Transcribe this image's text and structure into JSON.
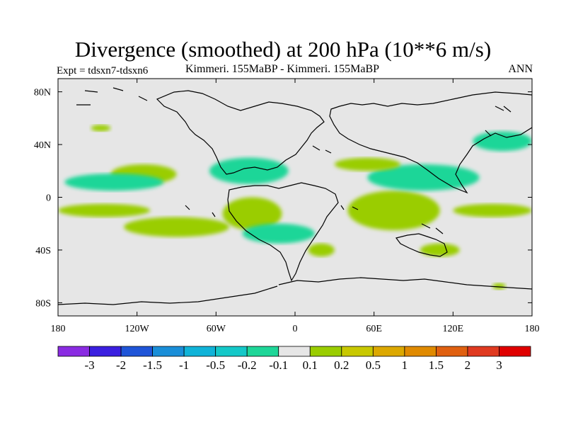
{
  "header": {
    "title": "Divergence (smoothed) at 200 hPa (10**6 m/s)",
    "expt": "Expt = tdsxn7-tdsxn6",
    "subtitle": "Kimmeri. 155MaBP - Kimmeri. 155MaBP",
    "season": "ANN"
  },
  "chart_data": {
    "type": "heatmap",
    "title": "Divergence (smoothed) at 200 hPa (10**6 m/s)",
    "projection": "cylindrical equidistant, paleo-continents (155 MaBP)",
    "xlim": [
      -180,
      180
    ],
    "ylim": [
      -90,
      90
    ],
    "x_ticks": [
      -180,
      -120,
      -60,
      0,
      60,
      120,
      180
    ],
    "x_tick_labels": [
      "180",
      "120W",
      "60W",
      "0",
      "60E",
      "120E",
      "180"
    ],
    "y_ticks": [
      80,
      40,
      0,
      -40,
      -80
    ],
    "y_tick_labels": [
      "80N",
      "40N",
      "0",
      "40S",
      "80S"
    ],
    "background_color": "#e6e6e6",
    "colorbar": {
      "labels": [
        "-3",
        "-2",
        "-1.5",
        "-1",
        "-0.5",
        "-0.2",
        "-0.1",
        "0.1",
        "0.2",
        "0.5",
        "1",
        "1.5",
        "2",
        "3"
      ],
      "colors": [
        "#8a2be2",
        "#3b1fe0",
        "#1f55d8",
        "#1a8ed8",
        "#10b3d8",
        "#14c8c8",
        "#1ed698",
        "#e6e6e6",
        "#9acd00",
        "#c8c800",
        "#dca800",
        "#e08a00",
        "#e06010",
        "#e03a20",
        "#e00000"
      ]
    },
    "regions": [
      {
        "level": "0.2",
        "color": "#9acd00",
        "lon": [
          -155,
          -140
        ],
        "lat": [
          55,
          50
        ]
      },
      {
        "level": "0.2",
        "color": "#9acd00",
        "lon": [
          -140,
          -90
        ],
        "lat": [
          25,
          10
        ]
      },
      {
        "level": "-0.1",
        "color": "#1ed698",
        "lon": [
          -175,
          -100
        ],
        "lat": [
          18,
          5
        ]
      },
      {
        "level": "0.2",
        "color": "#9acd00",
        "lon": [
          -180,
          -110
        ],
        "lat": [
          -5,
          -15
        ]
      },
      {
        "level": "0.2",
        "color": "#9acd00",
        "lon": [
          -130,
          -50
        ],
        "lat": [
          -15,
          -30
        ]
      },
      {
        "level": "-0.1",
        "color": "#1ed698",
        "lon": [
          -65,
          -5
        ],
        "lat": [
          30,
          10
        ]
      },
      {
        "level": "0.2",
        "color": "#9acd00",
        "lon": [
          -55,
          -10
        ],
        "lat": [
          0,
          -25
        ]
      },
      {
        "level": "-0.1",
        "color": "#1ed698",
        "lon": [
          -40,
          15
        ],
        "lat": [
          -20,
          -35
        ]
      },
      {
        "level": "0.2",
        "color": "#9acd00",
        "lon": [
          40,
          110
        ],
        "lat": [
          5,
          -25
        ]
      },
      {
        "level": "-0.1",
        "color": "#1ed698",
        "lon": [
          55,
          140
        ],
        "lat": [
          25,
          5
        ]
      },
      {
        "level": "0.2",
        "color": "#9acd00",
        "lon": [
          120,
          180
        ],
        "lat": [
          -5,
          -15
        ]
      },
      {
        "level": "-0.1",
        "color": "#1ed698",
        "lon": [
          135,
          180
        ],
        "lat": [
          50,
          35
        ]
      },
      {
        "level": "0.2",
        "color": "#9acd00",
        "lon": [
          30,
          80
        ],
        "lat": [
          30,
          20
        ]
      },
      {
        "level": "0.2",
        "color": "#9acd00",
        "lon": [
          10,
          30
        ],
        "lat": [
          -35,
          -45
        ]
      },
      {
        "level": "0.2",
        "color": "#9acd00",
        "lon": [
          95,
          125
        ],
        "lat": [
          -35,
          -45
        ]
      },
      {
        "level": "0.2",
        "color": "#9acd00",
        "lon": [
          150,
          160
        ],
        "lat": [
          -65,
          -70
        ]
      }
    ]
  }
}
